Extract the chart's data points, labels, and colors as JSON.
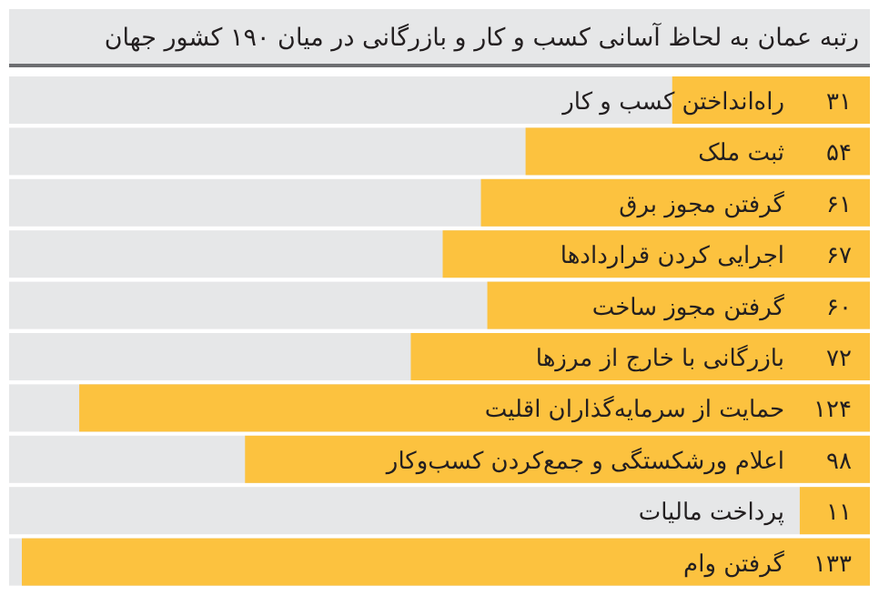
{
  "chart_data": {
    "type": "bar",
    "orientation": "horizontal",
    "title": "رتبه عمان به لحاظ آسانی کسب و کار و بازرگانی در میان ۱۹۰ کشور جهان",
    "categories": [
      "راه‌انداختن کسب و کار",
      "ثبت ملک",
      "گرفتن مجوز برق",
      "اجرایی کردن قراردادها",
      "گرفتن مجوز ساخت",
      "بازرگانی با خارج از مرزها",
      "حمایت از سرمایه‌گذاران اقلیت",
      "اعلام ورشکستگی و جمع‌کردن کسب‌وکار",
      "پرداخت مالیات",
      "گرفتن وام"
    ],
    "values": [
      31,
      54,
      61,
      67,
      60,
      72,
      124,
      98,
      11,
      133
    ],
    "value_labels": [
      "۳۱",
      "۵۴",
      "۶۱",
      "۶۷",
      "۶۰",
      "۷۲",
      "۱۲۴",
      "۹۸",
      "۱۱",
      "۱۳۳"
    ],
    "color": "#fcc23f",
    "xlim": [
      135,
      0
    ],
    "tick_labels": "y"
  }
}
